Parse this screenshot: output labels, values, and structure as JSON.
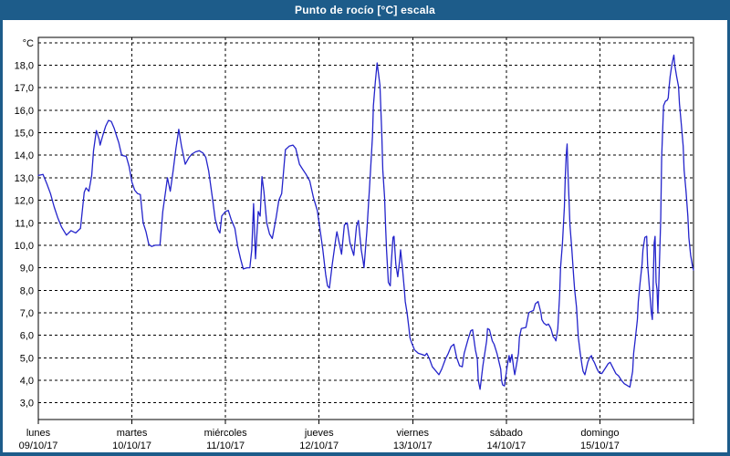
{
  "window": {
    "title": "Punto de rocío [°C] escala"
  },
  "colors": {
    "frame_blue": "#1d5c8a",
    "line_blue": "#2424cb",
    "grid_black": "#000000",
    "plot_background": "#ffffff",
    "title_text": "#ffffff"
  },
  "chart_data": {
    "type": "line",
    "title": "Punto de rocío [°C] escala",
    "grid": "dashed",
    "legend": "none",
    "y_axis": {
      "unit": "°C",
      "tick_values": [
        18,
        17,
        16,
        15,
        14,
        13,
        12,
        11,
        10,
        9,
        8,
        7,
        6,
        5,
        4,
        3
      ],
      "tick_labels": [
        "18,0",
        "17,0",
        "16,0",
        "15,0",
        "14,0",
        "13,0",
        "12,0",
        "11,0",
        "10,0",
        "9,0",
        "8,0",
        "7,0",
        "6,0",
        "5,0",
        "4,0",
        "3,0"
      ],
      "extra_unlabeled_gridline_value": 19,
      "range_shown": [
        2.3,
        19.2
      ]
    },
    "x_axis": {
      "x_unit": "days since 09/10/17 00:00",
      "range_days": [
        0,
        7
      ],
      "day_ticks": [
        {
          "name": "lunes",
          "date": "09/10/17"
        },
        {
          "name": "martes",
          "date": "10/10/17"
        },
        {
          "name": "miércoles",
          "date": "11/10/17"
        },
        {
          "name": "jueves",
          "date": "12/10/17"
        },
        {
          "name": "viernes",
          "date": "13/10/17"
        },
        {
          "name": "sábado",
          "date": "14/10/17"
        },
        {
          "name": "domingo",
          "date": "15/10/17"
        }
      ]
    },
    "series": [
      {
        "name": "Punto de rocío",
        "color": "#2424cb",
        "points": [
          [
            0,
            13.1
          ],
          [
            0.05,
            13.15
          ],
          [
            0.09,
            12.75
          ],
          [
            0.13,
            12.3
          ],
          [
            0.17,
            11.7
          ],
          [
            0.21,
            11.2
          ],
          [
            0.25,
            10.8
          ],
          [
            0.3,
            10.45
          ],
          [
            0.35,
            10.65
          ],
          [
            0.4,
            10.55
          ],
          [
            0.45,
            10.75
          ],
          [
            0.49,
            12.35
          ],
          [
            0.51,
            12.55
          ],
          [
            0.54,
            12.4
          ],
          [
            0.57,
            13.1
          ],
          [
            0.59,
            14.2
          ],
          [
            0.62,
            15.1
          ],
          [
            0.65,
            14.7
          ],
          [
            0.66,
            14.45
          ],
          [
            0.69,
            14.9
          ],
          [
            0.72,
            15.3
          ],
          [
            0.75,
            15.55
          ],
          [
            0.78,
            15.5
          ],
          [
            0.81,
            15.2
          ],
          [
            0.84,
            14.8
          ],
          [
            0.86,
            14.55
          ],
          [
            0.89,
            14.0
          ],
          [
            0.94,
            13.95
          ],
          [
            0.97,
            13.5
          ],
          [
            1.0,
            12.8
          ],
          [
            1.03,
            12.45
          ],
          [
            1.06,
            12.3
          ],
          [
            1.09,
            12.25
          ],
          [
            1.12,
            11.0
          ],
          [
            1.15,
            10.6
          ],
          [
            1.18,
            10.05
          ],
          [
            1.21,
            9.95
          ],
          [
            1.25,
            10.0
          ],
          [
            1.3,
            10.0
          ],
          [
            1.33,
            11.5
          ],
          [
            1.36,
            12.4
          ],
          [
            1.38,
            13.0
          ],
          [
            1.41,
            12.4
          ],
          [
            1.44,
            13.3
          ],
          [
            1.47,
            14.3
          ],
          [
            1.5,
            15.15
          ],
          [
            1.53,
            14.4
          ],
          [
            1.57,
            13.6
          ],
          [
            1.61,
            13.9
          ],
          [
            1.64,
            14.05
          ],
          [
            1.68,
            14.15
          ],
          [
            1.72,
            14.2
          ],
          [
            1.76,
            14.1
          ],
          [
            1.79,
            13.9
          ],
          [
            1.82,
            13.3
          ],
          [
            1.86,
            12.1
          ],
          [
            1.89,
            11.15
          ],
          [
            1.92,
            10.7
          ],
          [
            1.94,
            10.55
          ],
          [
            1.96,
            11.3
          ],
          [
            2.0,
            11.5
          ],
          [
            2.03,
            11.55
          ],
          [
            2.06,
            11.15
          ],
          [
            2.1,
            10.75
          ],
          [
            2.13,
            9.95
          ],
          [
            2.16,
            9.4
          ],
          [
            2.19,
            8.95
          ],
          [
            2.23,
            9.0
          ],
          [
            2.26,
            9.0
          ],
          [
            2.28,
            9.8
          ],
          [
            2.3,
            11.85
          ],
          [
            2.32,
            9.4
          ],
          [
            2.35,
            11.5
          ],
          [
            2.37,
            11.3
          ],
          [
            2.39,
            13.05
          ],
          [
            2.41,
            12.4
          ],
          [
            2.44,
            11.0
          ],
          [
            2.47,
            10.5
          ],
          [
            2.5,
            10.3
          ],
          [
            2.54,
            11.2
          ],
          [
            2.57,
            12.0
          ],
          [
            2.6,
            12.3
          ],
          [
            2.64,
            14.25
          ],
          [
            2.68,
            14.4
          ],
          [
            2.72,
            14.45
          ],
          [
            2.75,
            14.3
          ],
          [
            2.79,
            13.6
          ],
          [
            2.82,
            13.4
          ],
          [
            2.86,
            13.15
          ],
          [
            2.9,
            12.85
          ],
          [
            2.94,
            12.1
          ],
          [
            2.98,
            11.55
          ],
          [
            3.0,
            11.0
          ],
          [
            3.04,
            9.8
          ],
          [
            3.07,
            8.7
          ],
          [
            3.09,
            8.2
          ],
          [
            3.11,
            8.1
          ],
          [
            3.14,
            9.15
          ],
          [
            3.18,
            10.35
          ],
          [
            3.19,
            10.6
          ],
          [
            3.23,
            9.8
          ],
          [
            3.24,
            9.6
          ],
          [
            3.27,
            10.9
          ],
          [
            3.3,
            11.0
          ],
          [
            3.33,
            10.1
          ],
          [
            3.37,
            9.55
          ],
          [
            3.4,
            10.85
          ],
          [
            3.42,
            11.1
          ],
          [
            3.45,
            9.8
          ],
          [
            3.47,
            9.3
          ],
          [
            3.48,
            9.0
          ],
          [
            3.51,
            10.6
          ],
          [
            3.53,
            12.0
          ],
          [
            3.55,
            13.35
          ],
          [
            3.57,
            14.85
          ],
          [
            3.58,
            16.2
          ],
          [
            3.6,
            17.25
          ],
          [
            3.62,
            18.1
          ],
          [
            3.65,
            17.1
          ],
          [
            3.67,
            14.95
          ],
          [
            3.68,
            13.35
          ],
          [
            3.7,
            12.1
          ],
          [
            3.71,
            10.9
          ],
          [
            3.72,
            9.8
          ],
          [
            3.74,
            8.35
          ],
          [
            3.76,
            8.2
          ],
          [
            3.77,
            9.15
          ],
          [
            3.79,
            10.35
          ],
          [
            3.8,
            10.4
          ],
          [
            3.82,
            9.15
          ],
          [
            3.84,
            8.6
          ],
          [
            3.86,
            9.3
          ],
          [
            3.87,
            9.8
          ],
          [
            3.89,
            9.0
          ],
          [
            3.91,
            8.05
          ],
          [
            3.92,
            7.5
          ],
          [
            3.94,
            7.0
          ],
          [
            3.96,
            6.3
          ],
          [
            3.97,
            5.9
          ],
          [
            3.99,
            5.65
          ],
          [
            4.02,
            5.35
          ],
          [
            4.06,
            5.2
          ],
          [
            4.1,
            5.15
          ],
          [
            4.13,
            5.1
          ],
          [
            4.15,
            5.2
          ],
          [
            4.18,
            4.95
          ],
          [
            4.21,
            4.6
          ],
          [
            4.25,
            4.4
          ],
          [
            4.28,
            4.25
          ],
          [
            4.31,
            4.5
          ],
          [
            4.35,
            4.95
          ],
          [
            4.38,
            5.2
          ],
          [
            4.41,
            5.5
          ],
          [
            4.44,
            5.6
          ],
          [
            4.47,
            5.0
          ],
          [
            4.5,
            4.65
          ],
          [
            4.53,
            4.6
          ],
          [
            4.55,
            5.2
          ],
          [
            4.59,
            5.8
          ],
          [
            4.62,
            6.2
          ],
          [
            4.64,
            6.25
          ],
          [
            4.67,
            5.35
          ],
          [
            4.69,
            4.95
          ],
          [
            4.7,
            4.0
          ],
          [
            4.72,
            3.6
          ],
          [
            4.75,
            4.65
          ],
          [
            4.79,
            5.75
          ],
          [
            4.8,
            6.3
          ],
          [
            4.82,
            6.25
          ],
          [
            4.85,
            5.75
          ],
          [
            4.87,
            5.6
          ],
          [
            4.9,
            5.2
          ],
          [
            4.94,
            4.5
          ],
          [
            4.95,
            4.0
          ],
          [
            4.96,
            3.8
          ],
          [
            4.98,
            3.75
          ],
          [
            5.01,
            4.65
          ],
          [
            5.03,
            5.1
          ],
          [
            5.04,
            4.8
          ],
          [
            5.06,
            5.15
          ],
          [
            5.08,
            4.5
          ],
          [
            5.09,
            4.25
          ],
          [
            5.13,
            5.2
          ],
          [
            5.14,
            5.9
          ],
          [
            5.16,
            6.3
          ],
          [
            5.21,
            6.35
          ],
          [
            5.24,
            7.0
          ],
          [
            5.26,
            7.05
          ],
          [
            5.29,
            7.1
          ],
          [
            5.31,
            7.4
          ],
          [
            5.34,
            7.5
          ],
          [
            5.37,
            7.0
          ],
          [
            5.38,
            6.7
          ],
          [
            5.4,
            6.55
          ],
          [
            5.43,
            6.45
          ],
          [
            5.45,
            6.5
          ],
          [
            5.47,
            6.35
          ],
          [
            5.48,
            6.25
          ],
          [
            5.5,
            5.95
          ],
          [
            5.52,
            5.85
          ],
          [
            5.53,
            5.75
          ],
          [
            5.55,
            6.3
          ],
          [
            5.57,
            7.8
          ],
          [
            5.58,
            9.0
          ],
          [
            5.6,
            10.1
          ],
          [
            5.62,
            11.7
          ],
          [
            5.63,
            13.05
          ],
          [
            5.64,
            14.0
          ],
          [
            5.65,
            14.5
          ],
          [
            5.66,
            13.05
          ],
          [
            5.67,
            12.0
          ],
          [
            5.68,
            10.9
          ],
          [
            5.7,
            9.8
          ],
          [
            5.72,
            8.6
          ],
          [
            5.73,
            8.05
          ],
          [
            5.75,
            7.25
          ],
          [
            5.76,
            6.55
          ],
          [
            5.77,
            5.9
          ],
          [
            5.79,
            5.2
          ],
          [
            5.81,
            4.65
          ],
          [
            5.82,
            4.4
          ],
          [
            5.84,
            4.25
          ],
          [
            5.87,
            4.8
          ],
          [
            5.89,
            5.0
          ],
          [
            5.91,
            5.1
          ],
          [
            5.92,
            4.95
          ],
          [
            5.94,
            4.8
          ],
          [
            5.97,
            4.5
          ],
          [
            5.99,
            4.35
          ],
          [
            6.02,
            4.3
          ],
          [
            6.06,
            4.55
          ],
          [
            6.09,
            4.75
          ],
          [
            6.11,
            4.8
          ],
          [
            6.14,
            4.55
          ],
          [
            6.17,
            4.3
          ],
          [
            6.2,
            4.2
          ],
          [
            6.23,
            4.0
          ],
          [
            6.26,
            3.85
          ],
          [
            6.3,
            3.75
          ],
          [
            6.32,
            3.7
          ],
          [
            6.35,
            4.4
          ],
          [
            6.36,
            5.2
          ],
          [
            6.38,
            5.9
          ],
          [
            6.4,
            6.7
          ],
          [
            6.41,
            7.5
          ],
          [
            6.43,
            8.35
          ],
          [
            6.45,
            9.15
          ],
          [
            6.46,
            9.8
          ],
          [
            6.48,
            10.35
          ],
          [
            6.5,
            10.4
          ],
          [
            6.51,
            9.15
          ],
          [
            6.53,
            8.05
          ],
          [
            6.55,
            7.0
          ],
          [
            6.56,
            6.7
          ],
          [
            6.57,
            8.45
          ],
          [
            6.58,
            10.1
          ],
          [
            6.59,
            10.4
          ],
          [
            6.6,
            8.35
          ],
          [
            6.61,
            8.05
          ],
          [
            6.62,
            7.0
          ],
          [
            6.63,
            8.3
          ],
          [
            6.64,
            9.8
          ],
          [
            6.65,
            11.2
          ],
          [
            6.66,
            13.9
          ],
          [
            6.68,
            16.2
          ],
          [
            6.7,
            16.4
          ],
          [
            6.72,
            16.45
          ],
          [
            6.73,
            16.55
          ],
          [
            6.74,
            17.05
          ],
          [
            6.75,
            17.5
          ],
          [
            6.77,
            18.05
          ],
          [
            6.79,
            18.45
          ],
          [
            6.8,
            18.0
          ],
          [
            6.82,
            17.5
          ],
          [
            6.84,
            17.05
          ],
          [
            6.85,
            16.3
          ],
          [
            6.87,
            15.35
          ],
          [
            6.89,
            14.4
          ],
          [
            6.9,
            13.35
          ],
          [
            6.92,
            12.4
          ],
          [
            6.94,
            11.3
          ],
          [
            6.95,
            10.35
          ],
          [
            6.97,
            9.55
          ],
          [
            6.99,
            9.05
          ],
          [
            7.0,
            8.9
          ]
        ]
      }
    ]
  }
}
